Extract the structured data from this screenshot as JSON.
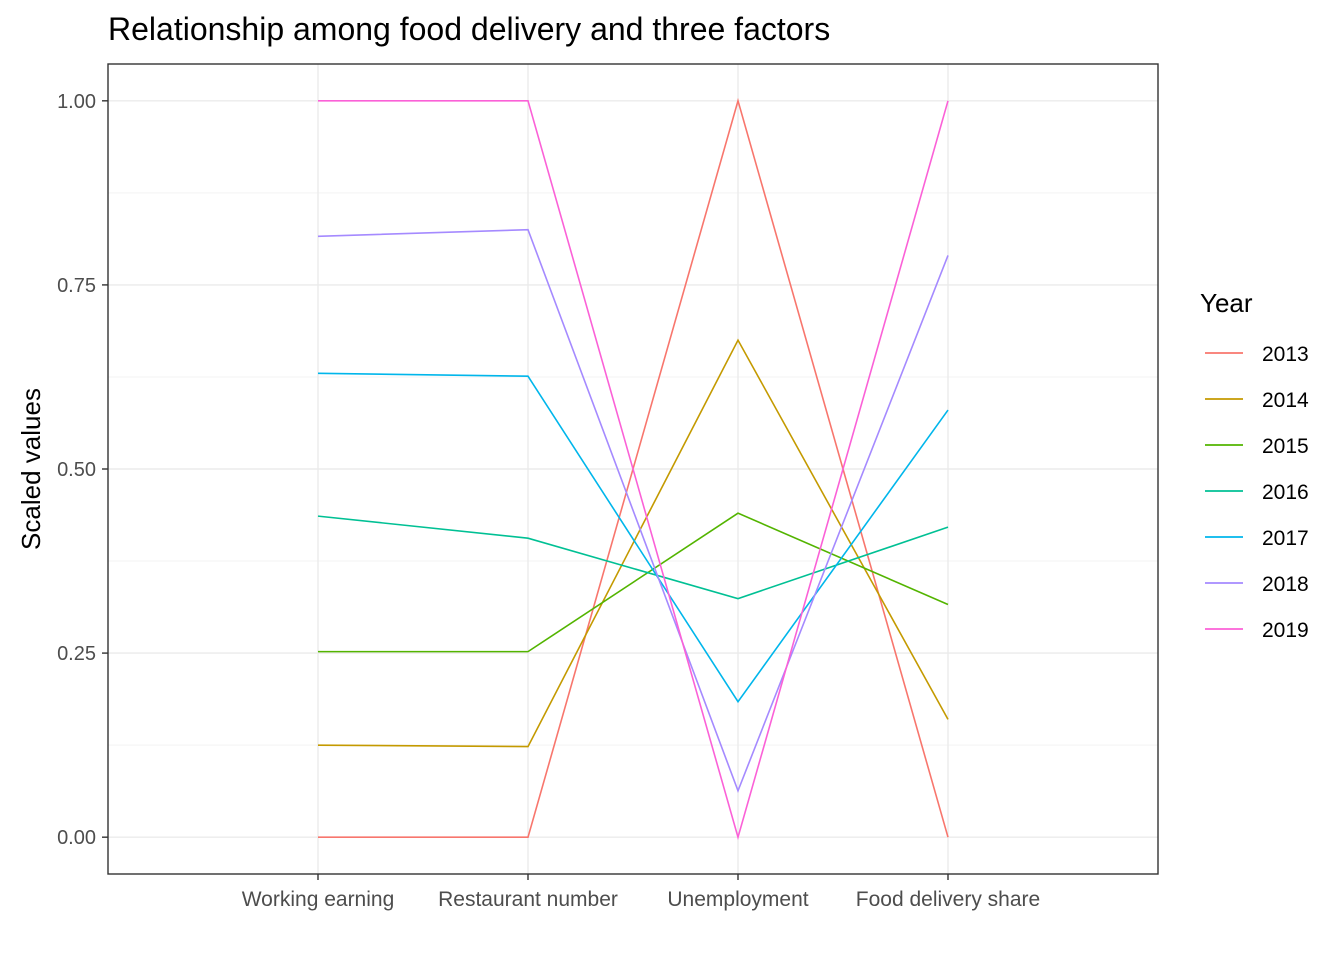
{
  "chart_data": {
    "type": "line",
    "title": "Relationship among food delivery and three factors",
    "xlabel": "",
    "ylabel": "Scaled values",
    "categories": [
      "Working earning",
      "Restaurant number",
      "Unemployment",
      "Food delivery share"
    ],
    "ylim": [
      -0.05,
      1.05
    ],
    "yticks": [
      0.0,
      0.25,
      0.5,
      0.75,
      1.0
    ],
    "ytick_labels": [
      "0.00",
      "0.25",
      "0.50",
      "0.75",
      "1.00"
    ],
    "grid": true,
    "legend": {
      "title": "Year",
      "position": "right"
    },
    "series": [
      {
        "name": "2013",
        "color": "#F8766D",
        "values": [
          0.0,
          0.0,
          1.0,
          0.0
        ]
      },
      {
        "name": "2014",
        "color": "#C49A00",
        "values": [
          0.125,
          0.123,
          0.675,
          0.16
        ]
      },
      {
        "name": "2015",
        "color": "#53B400",
        "values": [
          0.252,
          0.252,
          0.44,
          0.316
        ]
      },
      {
        "name": "2016",
        "color": "#00C094",
        "values": [
          0.436,
          0.406,
          0.324,
          0.421
        ]
      },
      {
        "name": "2017",
        "color": "#00B6EB",
        "values": [
          0.63,
          0.626,
          0.184,
          0.58
        ]
      },
      {
        "name": "2018",
        "color": "#A58AFF",
        "values": [
          0.816,
          0.825,
          0.063,
          0.79
        ]
      },
      {
        "name": "2019",
        "color": "#FB61D7",
        "values": [
          1.0,
          1.0,
          0.0,
          1.0
        ]
      }
    ]
  }
}
